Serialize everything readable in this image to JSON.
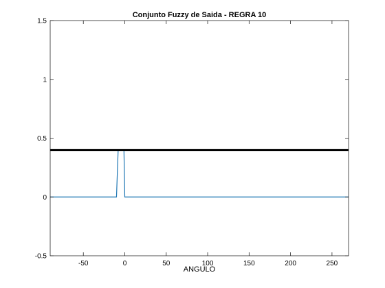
{
  "chart_data": {
    "type": "line",
    "title": "Conjunto Fuzzy de Saida - REGRA 10",
    "xlabel": "ANGULO",
    "ylabel": "",
    "xlim": [
      -90,
      270
    ],
    "ylim": [
      -0.5,
      1.5
    ],
    "xticks": [
      -50,
      0,
      50,
      100,
      150,
      200,
      250
    ],
    "yticks": [
      -0.5,
      0,
      0.5,
      1,
      1.5
    ],
    "grid": false,
    "series": [
      {
        "color": "#1f77b4",
        "line_width": "thin",
        "x": [
          -90,
          -10,
          -8,
          -1,
          0,
          270
        ],
        "y": [
          0,
          0,
          0.4,
          0.4,
          0,
          0
        ]
      },
      {
        "color": "#000000",
        "line_width": "thick",
        "x": [
          -90,
          270
        ],
        "y": [
          0.4,
          0.4
        ]
      }
    ]
  }
}
